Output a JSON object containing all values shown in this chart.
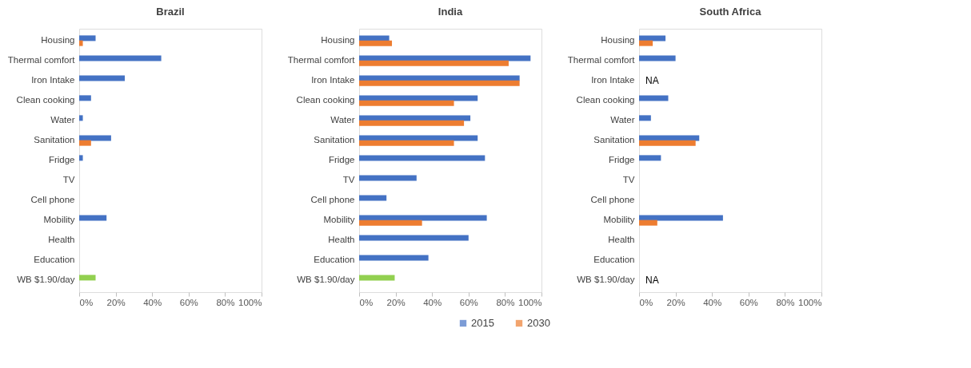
{
  "chart_data": [
    {
      "type": "bar",
      "orientation": "horizontal",
      "title": "Brazil",
      "categories": [
        "Housing",
        "Thermal comfort",
        "Iron Intake",
        "Clean cooking",
        "Water",
        "Sanitation",
        "Fridge",
        "TV",
        "Cell phone",
        "Mobility",
        "Health",
        "Education",
        "WB $1.90/day"
      ],
      "series": [
        {
          "name": "2015",
          "color": "#4472c4",
          "colors": [
            "#4472c4",
            "#4472c4",
            "#4472c4",
            "#4472c4",
            "#4472c4",
            "#4472c4",
            "#4472c4",
            "#4472c4",
            "#4472c4",
            "#4472c4",
            "#4472c4",
            "#4472c4",
            "#92d050"
          ],
          "values": [
            9,
            45,
            25,
            6.5,
            2,
            17.5,
            2,
            null,
            null,
            15,
            null,
            null,
            9
          ]
        },
        {
          "name": "2030",
          "color": "#ed7d31",
          "values": [
            2,
            null,
            null,
            null,
            null,
            6.5,
            null,
            null,
            null,
            null,
            null,
            null,
            null
          ]
        }
      ],
      "xlim": [
        0,
        100
      ],
      "xticks": [
        {
          "value": 0,
          "label": "0%"
        },
        {
          "value": 20,
          "label": "20%"
        },
        {
          "value": 40,
          "label": "40%"
        },
        {
          "value": 60,
          "label": "60%"
        },
        {
          "value": 80,
          "label": "80%"
        },
        {
          "value": 100,
          "label": "100%"
        }
      ],
      "grid": false,
      "legend": "bottom"
    },
    {
      "type": "bar",
      "orientation": "horizontal",
      "title": "India",
      "categories": [
        "Housing",
        "Thermal comfort",
        "Iron Intake",
        "Clean cooking",
        "Water",
        "Sanitation",
        "Fridge",
        "TV",
        "Cell phone",
        "Mobility",
        "Health",
        "Education",
        "WB $1.90/day"
      ],
      "series": [
        {
          "name": "2015",
          "color": "#4472c4",
          "colors": [
            "#4472c4",
            "#4472c4",
            "#4472c4",
            "#4472c4",
            "#4472c4",
            "#4472c4",
            "#4472c4",
            "#4472c4",
            "#4472c4",
            "#4472c4",
            "#4472c4",
            "#4472c4",
            "#92d050"
          ],
          "values": [
            16.5,
            94,
            88,
            65,
            61,
            65,
            69,
            31.5,
            15,
            70,
            60,
            38,
            19.5
          ]
        },
        {
          "name": "2030",
          "color": "#ed7d31",
          "values": [
            18,
            82,
            88,
            52,
            57.5,
            52,
            null,
            null,
            null,
            34.5,
            null,
            null,
            null
          ]
        }
      ],
      "xlim": [
        0,
        100
      ],
      "xticks": [
        {
          "value": 0,
          "label": "0%"
        },
        {
          "value": 20,
          "label": "20%"
        },
        {
          "value": 40,
          "label": "40%"
        },
        {
          "value": 60,
          "label": "60%"
        },
        {
          "value": 80,
          "label": "80%"
        },
        {
          "value": 100,
          "label": "100%"
        }
      ],
      "grid": false,
      "legend": "bottom"
    },
    {
      "type": "bar",
      "orientation": "horizontal",
      "title": "South Africa",
      "categories": [
        "Housing",
        "Thermal comfort",
        "Iron Intake",
        "Clean cooking",
        "Water",
        "Sanitation",
        "Fridge",
        "TV",
        "Cell phone",
        "Mobility",
        "Health",
        "Education",
        "WB $1.90/day"
      ],
      "series": [
        {
          "name": "2015",
          "color": "#4472c4",
          "values": [
            14.5,
            20,
            null,
            16,
            6.5,
            33,
            12,
            null,
            null,
            46,
            null,
            null,
            null
          ],
          "value_labels": [
            null,
            null,
            "NA",
            null,
            null,
            null,
            null,
            null,
            null,
            null,
            null,
            null,
            "NA"
          ]
        },
        {
          "name": "2030",
          "color": "#ed7d31",
          "values": [
            7.5,
            null,
            null,
            null,
            null,
            31,
            null,
            null,
            null,
            10,
            null,
            null,
            null
          ]
        }
      ],
      "xlim": [
        0,
        100
      ],
      "xticks": [
        {
          "value": 0,
          "label": "0%"
        },
        {
          "value": 20,
          "label": "20%"
        },
        {
          "value": 40,
          "label": "40%"
        },
        {
          "value": 60,
          "label": "60%"
        },
        {
          "value": 80,
          "label": "80%"
        },
        {
          "value": 100,
          "label": "100%"
        }
      ],
      "grid": false,
      "legend": "bottom"
    }
  ]
}
